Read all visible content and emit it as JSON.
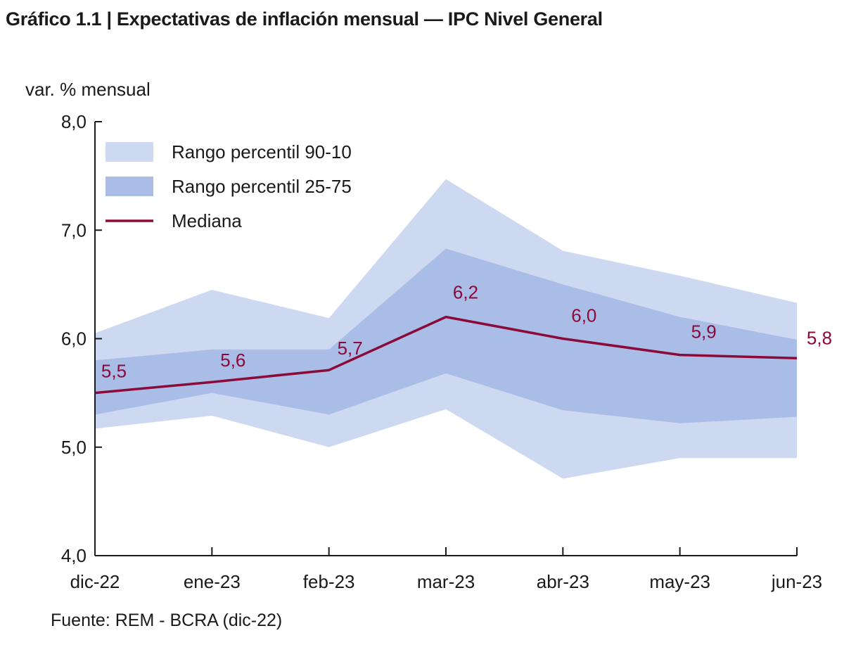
{
  "title": "Gráfico 1.1 | Expectativas de inflación mensual — IPC Nivel General",
  "source": "Fuente: REM - BCRA (dic-22)",
  "colors": {
    "outer_band": "#cdd9f0",
    "inner_band": "#aabde6",
    "median": "#8b0a3a",
    "axis": "#1a1a1a"
  },
  "chart_data": {
    "type": "area",
    "ylabel": "var. % mensual",
    "xlabel": "",
    "ylim": [
      4.0,
      8.0
    ],
    "yticks": [
      4.0,
      5.0,
      6.0,
      7.0,
      8.0
    ],
    "ytick_labels": [
      "4,0",
      "5,0",
      "6,0",
      "7,0",
      "8,0"
    ],
    "categories": [
      "dic-22",
      "ene-23",
      "feb-23",
      "mar-23",
      "abr-23",
      "may-23",
      "jun-23"
    ],
    "grid": false,
    "legend_position": "top-left",
    "legend": [
      {
        "label": "Rango percentil 90-10",
        "kind": "outer_band"
      },
      {
        "label": "Rango percentil 25-75",
        "kind": "inner_band"
      },
      {
        "label": "Mediana",
        "kind": "median"
      }
    ],
    "series": [
      {
        "name": "Rango percentil 90-10",
        "kind": "band",
        "low": [
          5.17,
          5.29,
          5.0,
          5.35,
          4.71,
          4.9,
          4.9
        ],
        "high": [
          6.05,
          6.45,
          6.19,
          7.47,
          6.81,
          6.58,
          6.33
        ]
      },
      {
        "name": "Rango percentil 25-75",
        "kind": "band",
        "low": [
          5.3,
          5.5,
          5.3,
          5.68,
          5.34,
          5.22,
          5.28
        ],
        "high": [
          5.8,
          5.9,
          5.9,
          6.83,
          6.5,
          6.2,
          5.99
        ]
      },
      {
        "name": "Mediana",
        "kind": "line",
        "values": [
          5.5,
          5.6,
          5.71,
          6.2,
          6.0,
          5.85,
          5.82
        ]
      }
    ],
    "data_labels": [
      "5,5",
      "5,6",
      "5,7",
      "6,2",
      "6,0",
      "5,9",
      "5,8"
    ]
  }
}
